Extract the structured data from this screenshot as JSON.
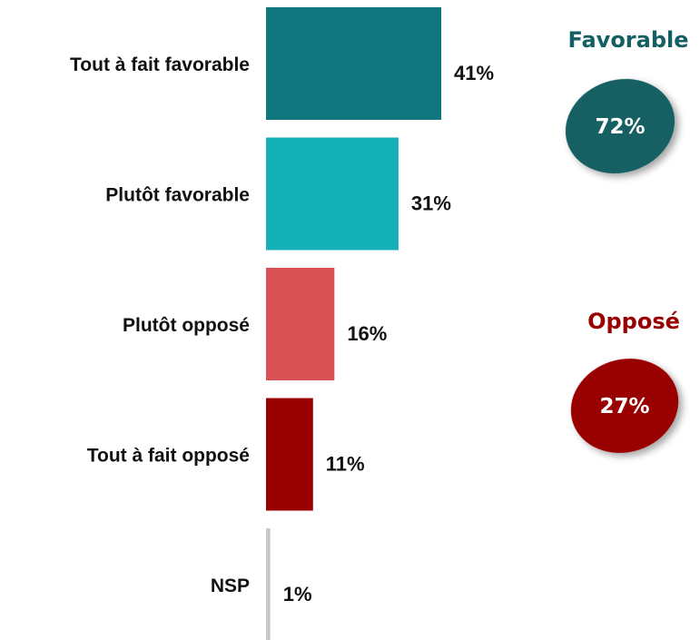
{
  "chart_data": {
    "type": "bar",
    "orientation": "horizontal",
    "categories": [
      "Tout à fait favorable",
      "Plutôt favorable",
      "Plutôt opposé",
      "Tout à fait opposé",
      "NSP"
    ],
    "values": [
      41,
      31,
      16,
      11,
      1
    ],
    "value_labels": [
      "41%",
      "31%",
      "16%",
      "11%",
      "1%"
    ],
    "colors": [
      "#11777f",
      "#14b0b7",
      "#d95055",
      "#990000",
      "#c8c8c8"
    ],
    "xlim": [
      0,
      41
    ],
    "grid": false,
    "legend": "none"
  },
  "summary": {
    "favorable": {
      "title": "Favorable",
      "value": "72%",
      "color": "#135f63"
    },
    "oppose": {
      "title": "Opposé",
      "value": "27%",
      "color": "#990000"
    }
  }
}
